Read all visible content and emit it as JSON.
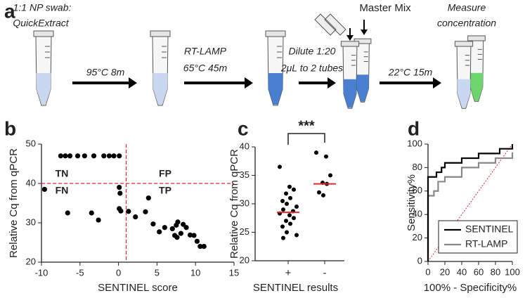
{
  "panel_a": {
    "label": "a",
    "start": [
      "1:1 NP swab:",
      "QuickExtract"
    ],
    "steps": [
      [
        "95°C 8m"
      ],
      [
        "RT-LAMP",
        "65°C 45m"
      ],
      [
        "Dilute 1:20",
        "2μL to 2 tubes"
      ],
      [
        "22°C 15m"
      ]
    ],
    "master_mix": "Master Mix",
    "end": [
      "Measure",
      "concentration"
    ]
  },
  "chart_data": [
    {
      "label": "b",
      "type": "scatter",
      "color": "#000000",
      "x": [
        -7.5,
        -6.9,
        -6.3,
        -5.3,
        -4.4,
        -3.2,
        -1.9,
        -1.2,
        -0.6,
        0.1,
        -9.6,
        -6.6,
        -3.5,
        -2.6,
        0.1,
        0.2,
        0.1,
        0.3,
        1.3,
        2.2,
        3.9,
        3.5,
        4.5,
        5.3,
        6.0,
        7.0,
        7.3,
        7.5,
        7.7,
        8.1,
        8.4,
        8.8,
        9.3,
        9.8,
        10.2,
        10.6,
        11.1,
        7.6
      ],
      "values": [
        47,
        47,
        47,
        47,
        47,
        47,
        47,
        47,
        47,
        47,
        38.5,
        32.5,
        32.5,
        30.7,
        39,
        37.5,
        33.6,
        33,
        32.9,
        31.5,
        36.3,
        32.8,
        29.7,
        27.7,
        28.8,
        28.5,
        26.8,
        29.4,
        30.2,
        27.3,
        29.6,
        28.8,
        26.9,
        26.8,
        25.3,
        24,
        24,
        26.3
      ],
      "xlim": [
        -10,
        15
      ],
      "xticks": [
        -10,
        -5,
        0,
        5,
        10,
        15
      ],
      "ylim": [
        20,
        50
      ],
      "yticks": [
        20,
        30,
        40,
        50
      ],
      "x_label": "SENTINEL score",
      "y_label": "Relative Cq from qPCR",
      "thresholds": {
        "x": 1,
        "y": 40,
        "color": "#e8262a"
      },
      "annotations": [
        "TN",
        "FP",
        "FN",
        "TP"
      ]
    },
    {
      "label": "c",
      "type": "dot",
      "color": "#000000",
      "categories": [
        "+",
        "-"
      ],
      "groups": [
        [
          36.5,
          33,
          32.5,
          31.8,
          31,
          30.5,
          30,
          29.5,
          29,
          28.7,
          28.3,
          28,
          27.5,
          27,
          26.5,
          26,
          25,
          24.5,
          24
        ],
        [
          39,
          38.3,
          35,
          33.7,
          33.5,
          32,
          31.5
        ]
      ],
      "medians": [
        28.5,
        33.5
      ],
      "median_color": "#e8262a",
      "ylim": [
        20,
        40
      ],
      "yticks": [
        20,
        25,
        30,
        35,
        40
      ],
      "x_label": "SENTINEL results",
      "y_label": "Relative Cq from qPCR",
      "significance": "***"
    },
    {
      "label": "d",
      "type": "line",
      "series": [
        {
          "name": "SENTINEL",
          "color": "#000000",
          "x": [
            0,
            0,
            10,
            10,
            16,
            16,
            20,
            20,
            40,
            40,
            60,
            60,
            85,
            85,
            100,
            100
          ],
          "values": [
            0,
            72,
            72,
            76,
            76,
            80,
            80,
            84,
            84,
            88,
            88,
            92,
            92,
            96,
            96,
            100
          ]
        },
        {
          "name": "RT-LAMP",
          "color": "#888888",
          "x": [
            0,
            0,
            7,
            7,
            12,
            12,
            20,
            20,
            40,
            40,
            60,
            60,
            80,
            80,
            100,
            100
          ],
          "values": [
            0,
            56,
            56,
            60,
            60,
            68,
            68,
            72,
            72,
            80,
            80,
            84,
            84,
            88,
            88,
            93
          ]
        }
      ],
      "reference_color": "#e8262a",
      "xlim": [
        0,
        100
      ],
      "xticks": [
        0,
        20,
        40,
        60,
        80,
        100
      ],
      "ylim": [
        0,
        100
      ],
      "yticks": [
        0,
        20,
        40,
        60,
        80,
        100
      ],
      "x_label": "100% - Specificity%",
      "y_label": "Sensitivity%"
    }
  ]
}
